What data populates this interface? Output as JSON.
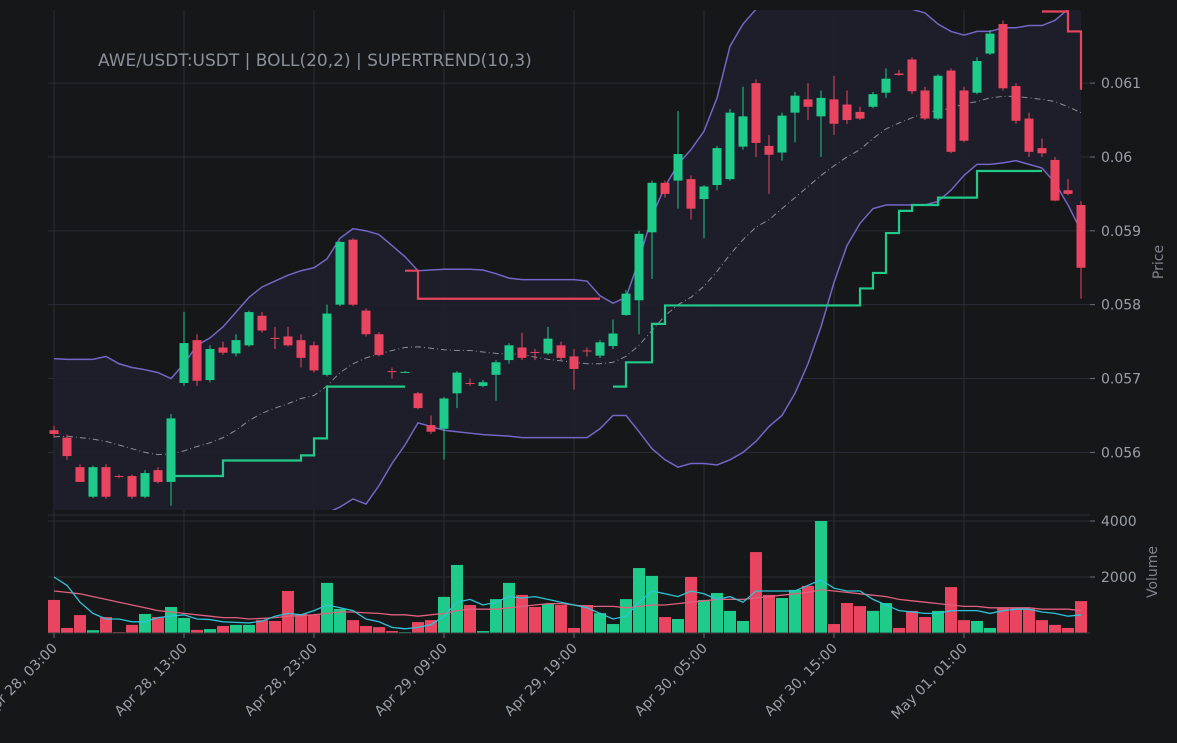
{
  "chart_data": {
    "type": "candlestick",
    "title": "AWE/USDT:USDT | BOLL(20,2) | SUPERTREND(10,3)",
    "ylabel": "Price",
    "up_color": "#1ecb8a",
    "down_color": "#ea4560",
    "ylim": [
      0.05522,
      0.06199
    ],
    "yticks": [
      0.056,
      0.057,
      0.058,
      0.059,
      0.06,
      0.061
    ],
    "grid": true,
    "x": [
      "Apr 28, 03:00",
      "Apr 28, 04:00",
      "Apr 28, 05:00",
      "Apr 28, 06:00",
      "Apr 28, 07:00",
      "Apr 28, 08:00",
      "Apr 28, 09:00",
      "Apr 28, 10:00",
      "Apr 28, 11:00",
      "Apr 28, 12:00",
      "Apr 28, 13:00",
      "Apr 28, 14:00",
      "Apr 28, 15:00",
      "Apr 28, 16:00",
      "Apr 28, 17:00",
      "Apr 28, 18:00",
      "Apr 28, 19:00",
      "Apr 28, 20:00",
      "Apr 28, 21:00",
      "Apr 28, 22:00",
      "Apr 28, 23:00",
      "Apr 29, 00:00",
      "Apr 29, 01:00",
      "Apr 29, 02:00",
      "Apr 29, 03:00",
      "Apr 29, 04:00",
      "Apr 29, 05:00",
      "Apr 29, 06:00",
      "Apr 29, 07:00",
      "Apr 29, 08:00",
      "Apr 29, 09:00",
      "Apr 29, 10:00",
      "Apr 29, 11:00",
      "Apr 29, 12:00",
      "Apr 29, 13:00",
      "Apr 29, 14:00",
      "Apr 29, 15:00",
      "Apr 29, 16:00",
      "Apr 29, 17:00",
      "Apr 29, 18:00",
      "Apr 29, 19:00",
      "Apr 29, 20:00",
      "Apr 29, 21:00",
      "Apr 29, 22:00",
      "Apr 29, 23:00",
      "Apr 30, 00:00",
      "Apr 30, 01:00",
      "Apr 30, 02:00",
      "Apr 30, 03:00",
      "Apr 30, 04:00",
      "Apr 30, 05:00",
      "Apr 30, 06:00",
      "Apr 30, 07:00",
      "Apr 30, 08:00",
      "Apr 30, 09:00",
      "Apr 30, 10:00",
      "Apr 30, 11:00",
      "Apr 30, 12:00",
      "Apr 30, 13:00",
      "Apr 30, 14:00",
      "Apr 30, 15:00",
      "Apr 30, 16:00",
      "Apr 30, 17:00",
      "Apr 30, 18:00",
      "Apr 30, 19:00",
      "Apr 30, 20:00",
      "Apr 30, 21:00",
      "Apr 30, 22:00",
      "Apr 30, 23:00",
      "May 01, 00:00",
      "May 01, 01:00",
      "May 01, 02:00",
      "May 01, 03:00",
      "May 01, 04:00",
      "May 01, 05:00",
      "May 01, 06:00",
      "May 01, 07:00",
      "May 01, 08:00",
      "May 01, 09:00",
      "May 01, 10:00"
    ],
    "xticks": [
      "Apr 28, 03:00",
      "Apr 28, 13:00",
      "Apr 28, 23:00",
      "Apr 29, 09:00",
      "Apr 29, 19:00",
      "Apr 30, 05:00",
      "Apr 30, 15:00",
      "May 01, 01:00"
    ],
    "open": [
      0.0563,
      0.0562,
      0.0558,
      0.0554,
      0.0558,
      0.05568,
      0.05568,
      0.0554,
      0.05576,
      0.0556,
      0.05694,
      0.05752,
      0.05698,
      0.05742,
      0.05734,
      0.05745,
      0.05785,
      0.05755,
      0.05757,
      0.05752,
      0.05745,
      0.05705,
      0.058,
      0.05888,
      0.05792,
      0.0576,
      0.0571,
      0.05709,
      0.0568,
      0.05637,
      0.05632,
      0.0568,
      0.05694,
      0.0569,
      0.05705,
      0.05725,
      0.05742,
      0.05736,
      0.05734,
      0.05745,
      0.0573,
      0.05738,
      0.05731,
      0.05744,
      0.05786,
      0.05806,
      0.05898,
      0.05965,
      0.05968,
      0.0597,
      0.05943,
      0.05962,
      0.0597,
      0.06014,
      0.061,
      0.06015,
      0.06006,
      0.0606,
      0.06078,
      0.06055,
      0.06078,
      0.06071,
      0.06061,
      0.06068,
      0.06087,
      0.06113,
      0.06132,
      0.0609,
      0.06052,
      0.06117,
      0.0609,
      0.06087,
      0.0614,
      0.0618,
      0.06096,
      0.06052,
      0.06012,
      0.05996,
      0.05955,
      0.05935
    ],
    "high": [
      0.05636,
      0.05624,
      0.05584,
      0.05582,
      0.05584,
      0.0557,
      0.0557,
      0.05576,
      0.0558,
      0.05652,
      0.0579,
      0.0576,
      0.05745,
      0.0575,
      0.0576,
      0.05792,
      0.0579,
      0.0577,
      0.0577,
      0.0576,
      0.0575,
      0.058,
      0.05886,
      0.0589,
      0.05795,
      0.05763,
      0.05715,
      0.0571,
      0.05682,
      0.0565,
      0.05675,
      0.0571,
      0.057,
      0.05698,
      0.05725,
      0.05748,
      0.05762,
      0.0574,
      0.0577,
      0.0575,
      0.0574,
      0.05742,
      0.05752,
      0.0578,
      0.0582,
      0.059,
      0.05968,
      0.05968,
      0.06062,
      0.05975,
      0.05962,
      0.06015,
      0.06065,
      0.06095,
      0.06105,
      0.0603,
      0.0606,
      0.06088,
      0.061,
      0.0609,
      0.0611,
      0.0609,
      0.06068,
      0.06088,
      0.0612,
      0.06118,
      0.06135,
      0.06095,
      0.06112,
      0.0612,
      0.06095,
      0.06135,
      0.06172,
      0.06185,
      0.061,
      0.0606,
      0.06025,
      0.06,
      0.0597,
      0.0594
    ],
    "low": [
      0.0562,
      0.0559,
      0.0556,
      0.05538,
      0.05537,
      0.05565,
      0.05537,
      0.05538,
      0.05558,
      0.05528,
      0.0569,
      0.0569,
      0.05695,
      0.05732,
      0.0573,
      0.05743,
      0.05762,
      0.0574,
      0.05743,
      0.05715,
      0.05708,
      0.05703,
      0.05798,
      0.05798,
      0.05757,
      0.0573,
      0.057,
      0.05708,
      0.05658,
      0.05625,
      0.0559,
      0.0566,
      0.0569,
      0.05688,
      0.0567,
      0.0572,
      0.05725,
      0.05725,
      0.05732,
      0.05725,
      0.05685,
      0.0573,
      0.05728,
      0.0574,
      0.05785,
      0.0576,
      0.05835,
      0.05945,
      0.0593,
      0.05915,
      0.0589,
      0.05955,
      0.05968,
      0.0601,
      0.06,
      0.0595,
      0.05995,
      0.0602,
      0.0605,
      0.06,
      0.0603,
      0.06045,
      0.0605,
      0.06066,
      0.0608,
      0.0611,
      0.06085,
      0.0605,
      0.0605,
      0.06005,
      0.0602,
      0.06085,
      0.06138,
      0.0609,
      0.06045,
      0.06,
      0.06,
      0.0594,
      0.05948,
      0.05808
    ],
    "close": [
      0.05625,
      0.05595,
      0.0556,
      0.0558,
      0.0554,
      0.05567,
      0.0554,
      0.05572,
      0.0556,
      0.05646,
      0.05748,
      0.05697,
      0.0574,
      0.05735,
      0.05752,
      0.0579,
      0.05765,
      0.05754,
      0.05745,
      0.05728,
      0.05711,
      0.05788,
      0.05885,
      0.058,
      0.0576,
      0.05732,
      0.05709,
      0.05709,
      0.0566,
      0.05628,
      0.05673,
      0.05708,
      0.05693,
      0.05695,
      0.05722,
      0.05745,
      0.05728,
      0.05735,
      0.05754,
      0.05728,
      0.05713,
      0.05737,
      0.05749,
      0.05761,
      0.05815,
      0.05896,
      0.05965,
      0.0595,
      0.06004,
      0.0593,
      0.0596,
      0.06012,
      0.0606,
      0.06055,
      0.06019,
      0.06003,
      0.06056,
      0.06083,
      0.06068,
      0.0608,
      0.06045,
      0.0605,
      0.06052,
      0.06085,
      0.06106,
      0.06111,
      0.06089,
      0.06052,
      0.0611,
      0.06007,
      0.06022,
      0.0613,
      0.06167,
      0.06093,
      0.06049,
      0.06007,
      0.06005,
      0.05941,
      0.0595,
      0.0585
    ],
    "bollinger": {
      "color": "#7466c6",
      "middle_color": "#8a8d93",
      "fill": "#1e1f2c",
      "upper": [
        0.05727,
        0.05726,
        0.05726,
        0.05726,
        0.0573,
        0.0572,
        0.05715,
        0.05712,
        0.05708,
        0.057,
        0.0572,
        0.05745,
        0.05755,
        0.0577,
        0.0579,
        0.0581,
        0.05824,
        0.05832,
        0.0584,
        0.05846,
        0.0585,
        0.05862,
        0.0589,
        0.05903,
        0.059,
        0.05895,
        0.0588,
        0.05865,
        0.05846,
        0.05847,
        0.05848,
        0.05848,
        0.05848,
        0.05847,
        0.05842,
        0.05836,
        0.05834,
        0.05834,
        0.05834,
        0.05834,
        0.05834,
        0.05832,
        0.05812,
        0.05802,
        0.0581,
        0.0586,
        0.0592,
        0.0596,
        0.0599,
        0.0601,
        0.06035,
        0.0608,
        0.0615,
        0.0618,
        0.062,
        0.06215,
        0.06235,
        0.0625,
        0.06258,
        0.0626,
        0.06255,
        0.0625,
        0.06235,
        0.0622,
        0.0621,
        0.062,
        0.062,
        0.06195,
        0.0618,
        0.0617,
        0.06165,
        0.0617,
        0.0617,
        0.06175,
        0.06175,
        0.06178,
        0.06178,
        0.06185,
        0.062,
        0.0622
      ],
      "middle": [
        0.05621,
        0.05622,
        0.0562,
        0.05618,
        0.05615,
        0.0561,
        0.05605,
        0.056,
        0.05597,
        0.05598,
        0.05602,
        0.05608,
        0.05613,
        0.0562,
        0.0563,
        0.05643,
        0.05653,
        0.0566,
        0.05666,
        0.05673,
        0.05677,
        0.0569,
        0.05708,
        0.0572,
        0.05728,
        0.05733,
        0.05738,
        0.05742,
        0.05743,
        0.05741,
        0.05739,
        0.05738,
        0.05738,
        0.05736,
        0.05734,
        0.05733,
        0.05733,
        0.05729,
        0.05726,
        0.05724,
        0.05722,
        0.0572,
        0.0572,
        0.05722,
        0.0573,
        0.05745,
        0.05765,
        0.05785,
        0.058,
        0.0581,
        0.05825,
        0.05845,
        0.05868,
        0.05888,
        0.05905,
        0.05915,
        0.0593,
        0.05945,
        0.0596,
        0.05975,
        0.05988,
        0.06,
        0.0601,
        0.06025,
        0.06038,
        0.06046,
        0.06053,
        0.0606,
        0.06063,
        0.06066,
        0.06072,
        0.06075,
        0.0608,
        0.06082,
        0.06082,
        0.0608,
        0.06078,
        0.06075,
        0.06068,
        0.0606
      ],
      "lower": [
        0.05515,
        0.05518,
        0.05514,
        0.0551,
        0.055,
        0.055,
        0.05495,
        0.05488,
        0.05486,
        0.05496,
        0.05484,
        0.05471,
        0.05471,
        0.0547,
        0.0547,
        0.05476,
        0.05482,
        0.05488,
        0.05492,
        0.055,
        0.05504,
        0.05518,
        0.05526,
        0.05537,
        0.0553,
        0.05555,
        0.05585,
        0.0561,
        0.0564,
        0.05635,
        0.0563,
        0.05628,
        0.05626,
        0.05624,
        0.05623,
        0.05622,
        0.0562,
        0.0562,
        0.0562,
        0.0562,
        0.0562,
        0.0562,
        0.05632,
        0.0565,
        0.0565,
        0.05628,
        0.05605,
        0.0559,
        0.0558,
        0.05585,
        0.05585,
        0.05583,
        0.0559,
        0.056,
        0.05615,
        0.05635,
        0.0565,
        0.0568,
        0.0572,
        0.0577,
        0.0583,
        0.0588,
        0.0591,
        0.0593,
        0.05935,
        0.05935,
        0.05935,
        0.05935,
        0.0594,
        0.05955,
        0.05975,
        0.0599,
        0.0599,
        0.05992,
        0.05995,
        0.0599,
        0.05985,
        0.05965,
        0.05935,
        0.059
      ]
    },
    "supertrend": {
      "up_color": "#22c98a",
      "down_color": "#e8455f",
      "up": [
        null,
        null,
        null,
        null,
        null,
        null,
        null,
        null,
        null,
        0.05568,
        0.05568,
        0.05568,
        0.05568,
        0.05589,
        0.05589,
        0.05589,
        0.05589,
        0.05589,
        0.05589,
        0.05596,
        0.05619,
        0.05689,
        0.05689,
        0.05689,
        0.05689,
        0.05689,
        0.05689,
        0.05689,
        null,
        null,
        null,
        null,
        null,
        null,
        null,
        null,
        null,
        null,
        null,
        null,
        null,
        null,
        null,
        0.05689,
        0.05722,
        0.05722,
        0.05774,
        0.05799,
        0.05799,
        0.05799,
        0.05799,
        0.05799,
        0.05799,
        0.05799,
        0.05799,
        0.05799,
        0.05799,
        0.05799,
        0.05799,
        0.05799,
        0.05799,
        0.05799,
        0.05822,
        0.05843,
        0.05897,
        0.05927,
        0.05935,
        0.05935,
        0.05945,
        0.05945,
        0.05945,
        0.05981,
        0.05981,
        0.05981,
        0.05981,
        0.05981,
        0.05981,
        null,
        null,
        null
      ],
      "down": [
        null,
        null,
        null,
        null,
        null,
        null,
        null,
        null,
        null,
        null,
        null,
        null,
        null,
        null,
        null,
        null,
        null,
        null,
        null,
        null,
        null,
        null,
        null,
        null,
        null,
        null,
        null,
        0.05846,
        0.05808,
        0.05808,
        0.05808,
        0.05808,
        0.05808,
        0.05808,
        0.05808,
        0.05808,
        0.05808,
        0.05808,
        0.05808,
        0.05808,
        0.05808,
        0.05808,
        0.05808,
        null,
        null,
        null,
        null,
        null,
        null,
        null,
        null,
        null,
        null,
        null,
        null,
        null,
        null,
        null,
        null,
        null,
        null,
        null,
        null,
        null,
        null,
        null,
        null,
        null,
        null,
        null,
        null,
        null,
        null,
        null,
        null,
        null,
        0.06197,
        0.06197,
        0.0617,
        0.06091
      ]
    },
    "volume": {
      "ylabel": "Volume",
      "ylim": [
        0,
        4000
      ],
      "yticks": [
        2000,
        4000
      ],
      "values": [
        1180,
        180,
        640,
        100,
        570,
        30,
        290,
        680,
        570,
        930,
        540,
        110,
        140,
        250,
        290,
        290,
        460,
        430,
        1500,
        680,
        640,
        1790,
        860,
        460,
        250,
        210,
        70,
        30,
        390,
        460,
        1290,
        2430,
        1000,
        70,
        1210,
        1790,
        1360,
        930,
        1040,
        1000,
        180,
        1000,
        710,
        320,
        1210,
        2320,
        2040,
        570,
        500,
        2000,
        1180,
        1430,
        790,
        430,
        2890,
        1360,
        1250,
        1540,
        1680,
        4000,
        320,
        1070,
        960,
        790,
        1070,
        180,
        790,
        570,
        790,
        1640,
        460,
        430,
        180,
        890,
        890,
        860,
        460,
        290,
        180,
        1140
      ],
      "ma_fast": {
        "color": "#2ec4d6",
        "values": [
          2000,
          1700,
          1100,
          700,
          500,
          500,
          400,
          400,
          550,
          600,
          650,
          500,
          480,
          400,
          380,
          360,
          420,
          600,
          700,
          650,
          800,
          1000,
          900,
          800,
          500,
          400,
          200,
          150,
          200,
          300,
          600,
          1100,
          1200,
          1000,
          1100,
          1300,
          1250,
          1300,
          1200,
          1100,
          1000,
          900,
          700,
          500,
          600,
          1100,
          1500,
          1400,
          1300,
          1500,
          1400,
          1200,
          1300,
          1100,
          1500,
          1500,
          1500,
          1500,
          1700,
          1900,
          1600,
          1500,
          1500,
          1200,
          1000,
          800,
          750,
          700,
          700,
          800,
          800,
          800,
          700,
          800,
          850,
          850,
          750,
          700,
          600,
          650
        ]
      },
      "ma_slow": {
        "color": "#e0607e",
        "values": [
          1500,
          1450,
          1400,
          1300,
          1200,
          1100,
          1000,
          900,
          800,
          750,
          700,
          650,
          600,
          550,
          550,
          500,
          520,
          550,
          600,
          620,
          650,
          700,
          750,
          750,
          720,
          700,
          650,
          650,
          600,
          650,
          700,
          800,
          850,
          850,
          850,
          900,
          950,
          1000,
          1050,
          1050,
          1000,
          950,
          950,
          950,
          900,
          950,
          1000,
          1000,
          1050,
          1100,
          1150,
          1200,
          1200,
          1200,
          1250,
          1300,
          1350,
          1400,
          1450,
          1550,
          1500,
          1450,
          1400,
          1350,
          1300,
          1200,
          1150,
          1100,
          1050,
          1000,
          950,
          950,
          900,
          900,
          900,
          900,
          850,
          850,
          850,
          800
        ]
      }
    }
  }
}
